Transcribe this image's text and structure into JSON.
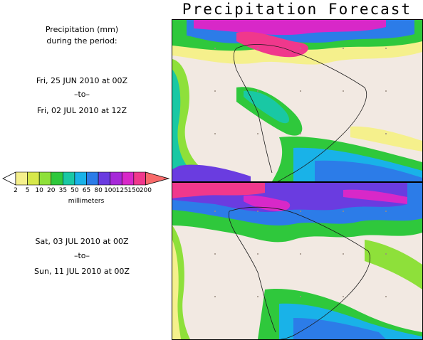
{
  "title": "Precipitation Forecast",
  "description": {
    "line1": "Precipitation (mm)",
    "line2": "during the period:"
  },
  "period1": {
    "start": "Fri, 25 JUN 2010 at 00Z",
    "separator": "–to–",
    "end": "Fri, 02 JUL 2010 at 12Z"
  },
  "period2": {
    "start": "Sat, 03 JUL 2010 at 00Z",
    "separator": "–to–",
    "end": "Sun, 11 JUL 2010 at 00Z"
  },
  "legend": {
    "units": "millimeters",
    "thresholds": [
      "2",
      "5",
      "10",
      "20",
      "35",
      "50",
      "65",
      "80",
      "100",
      "125",
      "150",
      "200"
    ],
    "colors": [
      "#f5f08c",
      "#d6e84a",
      "#8ee03a",
      "#2fc83c",
      "#19c8a4",
      "#19b2e8",
      "#2c7ce8",
      "#6a3ce0",
      "#a628d8",
      "#d828c8",
      "#f0388c",
      "#f86a6a"
    ]
  }
}
